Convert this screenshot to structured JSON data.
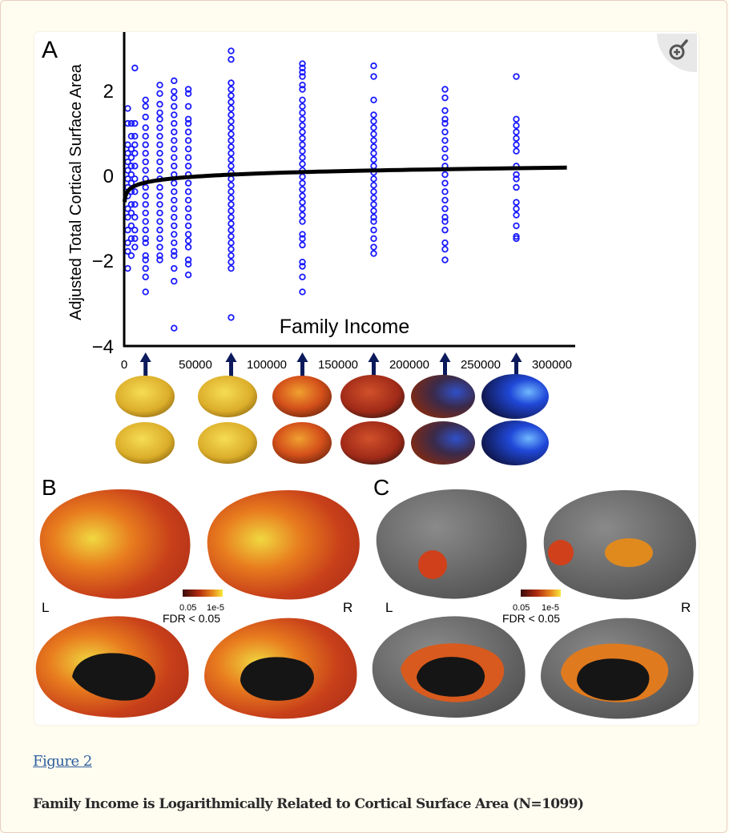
{
  "figure": {
    "link_label": "Figure 2",
    "caption_title": "Family Income is Logarithmically Related to Cortical Surface Area (N=1099)",
    "zoom_icon": "magnify-plus-icon"
  },
  "panels": {
    "a_label": "A",
    "b_label": "B",
    "c_label": "C",
    "left_label": "L",
    "right_label": "R",
    "colorbar_low": "0.05",
    "colorbar_high": "1e-5",
    "colorbar_caption": "FDR < 0.05"
  },
  "chart_data": {
    "type": "scatter",
    "xlabel": "Family Income",
    "ylabel": "Adjusted Total Cortical Surface Area",
    "xlim": [
      0,
      320000
    ],
    "ylim": [
      -4,
      3.2
    ],
    "xticks": [
      "0",
      "50000",
      "100000",
      "150000",
      "200000",
      "250000",
      "300000"
    ],
    "yticks": [
      "2",
      "0",
      "−2",
      "−4"
    ],
    "point_color": "#1a1aff",
    "fit": {
      "form": "logarithmic",
      "color": "#000000"
    },
    "arrow_incomes": [
      15000,
      75000,
      125000,
      175000,
      225000,
      275000
    ],
    "columns": [
      {
        "x": 2500,
        "y": [
          1.55,
          1.2,
          0.7,
          0.5,
          0.3,
          0.1,
          -0.1,
          -0.3,
          -0.5,
          -0.8,
          -1.0,
          -1.3,
          -1.6,
          -1.8,
          -2.2
        ]
      },
      {
        "x": 5000,
        "y": [
          1.2,
          0.9,
          0.6,
          0.4,
          0.2,
          0,
          -0.2,
          -0.4,
          -0.7,
          -0.9,
          -1.2,
          -1.5,
          -1.9
        ]
      },
      {
        "x": 7500,
        "y": [
          2.5,
          1.2,
          0.9,
          0.7,
          0.5,
          0.2,
          -0.1,
          -0.4,
          -0.7,
          -1.0,
          -1.3,
          -1.5,
          -1.7
        ]
      },
      {
        "x": 15000,
        "y": [
          1.75,
          1.6,
          1.35,
          1.1,
          0.9,
          0.7,
          0.5,
          0.3,
          0.1,
          -0.1,
          -0.3,
          -0.5,
          -0.7,
          -0.9,
          -1.1,
          -1.3,
          -1.5,
          -1.6,
          -1.9,
          -2.0,
          -2.2,
          -2.4,
          -2.75
        ]
      },
      {
        "x": 25000,
        "y": [
          2.1,
          1.9,
          1.65,
          1.45,
          1.3,
          1.1,
          0.9,
          0.7,
          0.5,
          0.3,
          0.1,
          -0.1,
          -0.3,
          -0.5,
          -0.7,
          -0.9,
          -1.1,
          -1.3,
          -1.5,
          -1.7,
          -1.9,
          -2.0
        ]
      },
      {
        "x": 35000,
        "y": [
          2.2,
          1.95,
          1.8,
          1.6,
          1.4,
          1.2,
          1.0,
          0.8,
          0.6,
          0.4,
          0.2,
          0,
          -0.2,
          -0.4,
          -0.6,
          -0.8,
          -1.0,
          -1.2,
          -1.4,
          -1.6,
          -1.8,
          -1.9,
          -2.2,
          -2.5,
          -3.6
        ]
      },
      {
        "x": 45000,
        "y": [
          2.0,
          1.9,
          1.6,
          1.3,
          1.2,
          1.0,
          0.8,
          0.6,
          0.4,
          0.2,
          0,
          -0.2,
          -0.4,
          -0.6,
          -0.8,
          -1.0,
          -1.2,
          -1.4,
          -1.55,
          -1.7,
          -2.0,
          -2.1,
          -2.35
        ]
      },
      {
        "x": 75000,
        "y": [
          2.9,
          2.7,
          2.15,
          2.0,
          1.85,
          1.7,
          1.55,
          1.4,
          1.25,
          1.1,
          0.95,
          0.8,
          0.65,
          0.5,
          0.35,
          0.2,
          0.05,
          -0.1,
          -0.25,
          -0.4,
          -0.55,
          -0.7,
          -0.85,
          -1.0,
          -1.15,
          -1.3,
          -1.45,
          -1.6,
          -1.75,
          -1.9,
          -2.05,
          -2.2,
          -3.35
        ]
      },
      {
        "x": 125000,
        "y": [
          2.6,
          2.5,
          2.4,
          2.3,
          2.1,
          2.0,
          1.75,
          1.6,
          1.45,
          1.3,
          1.15,
          1.0,
          0.85,
          0.7,
          0.55,
          0.4,
          0.25,
          0.1,
          -0.05,
          -0.2,
          -0.35,
          -0.5,
          -0.65,
          -0.8,
          -0.95,
          -1.1,
          -1.4,
          -1.5,
          -1.65,
          -2.05,
          -2.15,
          -2.4,
          -2.75
        ]
      },
      {
        "x": 175000,
        "y": [
          2.55,
          2.3,
          1.75,
          1.4,
          1.25,
          1.1,
          0.95,
          0.8,
          0.65,
          0.5,
          0.35,
          0.2,
          0.05,
          -0.1,
          -0.25,
          -0.4,
          -0.55,
          -0.7,
          -0.85,
          -1.0,
          -1.1,
          -1.3,
          -1.5,
          -1.7,
          -1.85
        ]
      },
      {
        "x": 225000,
        "y": [
          2.0,
          1.8,
          1.5,
          1.3,
          1.2,
          1.0,
          0.8,
          0.6,
          0.4,
          0.2,
          0,
          -0.2,
          -0.4,
          -0.6,
          -0.8,
          -1.0,
          -1.1,
          -1.3,
          -1.6,
          -1.75,
          -2.0
        ]
      },
      {
        "x": 275000,
        "y": [
          2.3,
          1.3,
          1.15,
          1.0,
          0.85,
          0.7,
          0.55,
          0.2,
          0,
          -0.1,
          -0.3,
          -0.65,
          -0.8,
          -0.95,
          -1.2,
          -1.45,
          -1.5
        ]
      }
    ]
  }
}
